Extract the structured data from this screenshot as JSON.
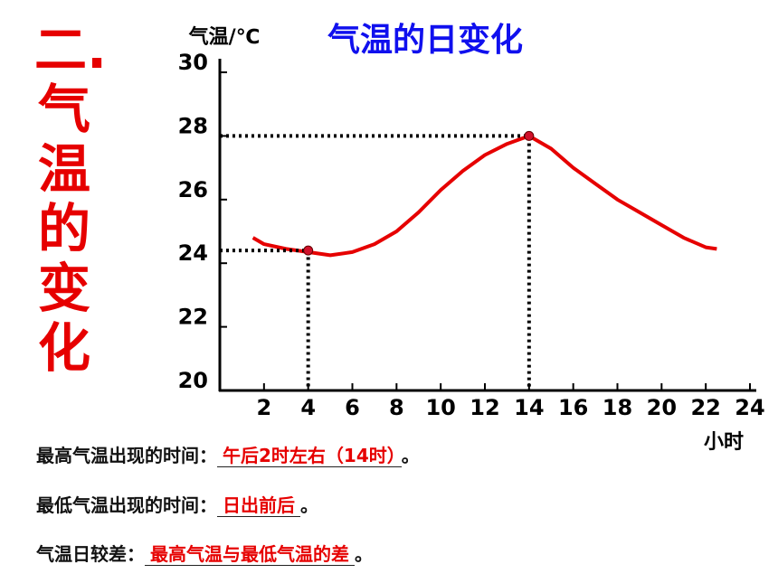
{
  "side_title": "二.气温的变化",
  "chart_data": {
    "type": "line",
    "title": "气温的日变化",
    "y_label": "气温/℃",
    "x_label": "小时",
    "x": [
      1.5,
      2,
      3,
      4,
      5,
      6,
      7,
      8,
      9,
      10,
      11,
      12,
      13,
      14,
      15,
      16,
      17,
      18,
      19,
      20,
      21,
      22,
      22.5
    ],
    "values": [
      24.8,
      24.6,
      24.45,
      24.35,
      24.25,
      24.35,
      24.6,
      25.0,
      25.6,
      26.3,
      26.9,
      27.4,
      27.75,
      28.0,
      27.6,
      27.0,
      26.5,
      26.0,
      25.6,
      25.2,
      24.8,
      24.5,
      24.45
    ],
    "color": "#e60000",
    "points": {
      "x": [
        4,
        14
      ],
      "values": [
        24.4,
        28
      ],
      "color": "#d0102a"
    },
    "xlim": [
      0,
      24
    ],
    "xticks": [
      2,
      4,
      6,
      8,
      10,
      12,
      14,
      16,
      18,
      20,
      22,
      24
    ],
    "ylim": [
      20,
      30
    ],
    "yticks": [
      20,
      22,
      24,
      26,
      28,
      30
    ]
  },
  "questions": [
    {
      "label": "最高气温出现的时间：",
      "answer": "午后2时左右（14时）",
      "end": "。"
    },
    {
      "label": "最低气温出现的时间：",
      "answer": "日出前后",
      "end": "。"
    },
    {
      "label": "气温日较差：",
      "answer": "最高气温与最低气温的差",
      "end": "。"
    }
  ]
}
